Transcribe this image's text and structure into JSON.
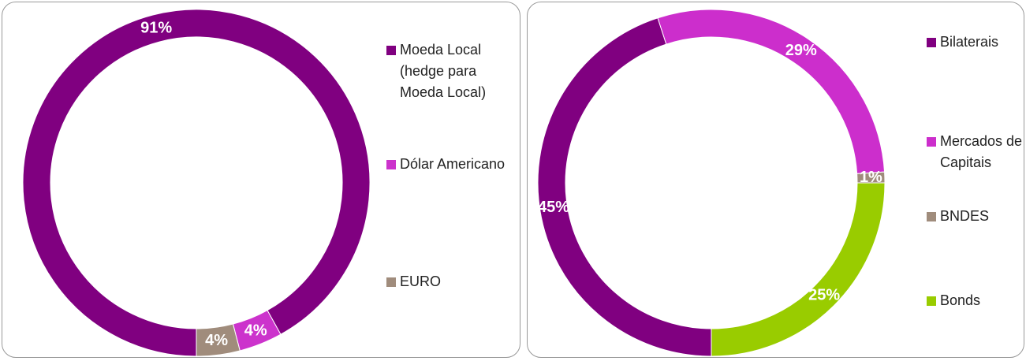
{
  "chart_data": [
    {
      "type": "donut",
      "categories": [
        "Moeda Local (hedge para Moeda Local)",
        "Dólar Americano",
        "EURO"
      ],
      "values": [
        91,
        4,
        4
      ],
      "value_labels": [
        "91%",
        "4%",
        "4%"
      ],
      "colors": [
        "#800080",
        "#cc33cc",
        "#a08c7c"
      ]
    },
    {
      "type": "donut",
      "categories": [
        "Bilaterais",
        "Mercados de Capitais",
        "BNDES",
        "Bonds"
      ],
      "values": [
        45,
        29,
        1,
        25
      ],
      "value_labels": [
        "45%",
        "29%",
        "1%",
        "25%"
      ],
      "colors": [
        "#800080",
        "#cc2ecc",
        "#a08c7c",
        "#99cc00"
      ]
    }
  ]
}
